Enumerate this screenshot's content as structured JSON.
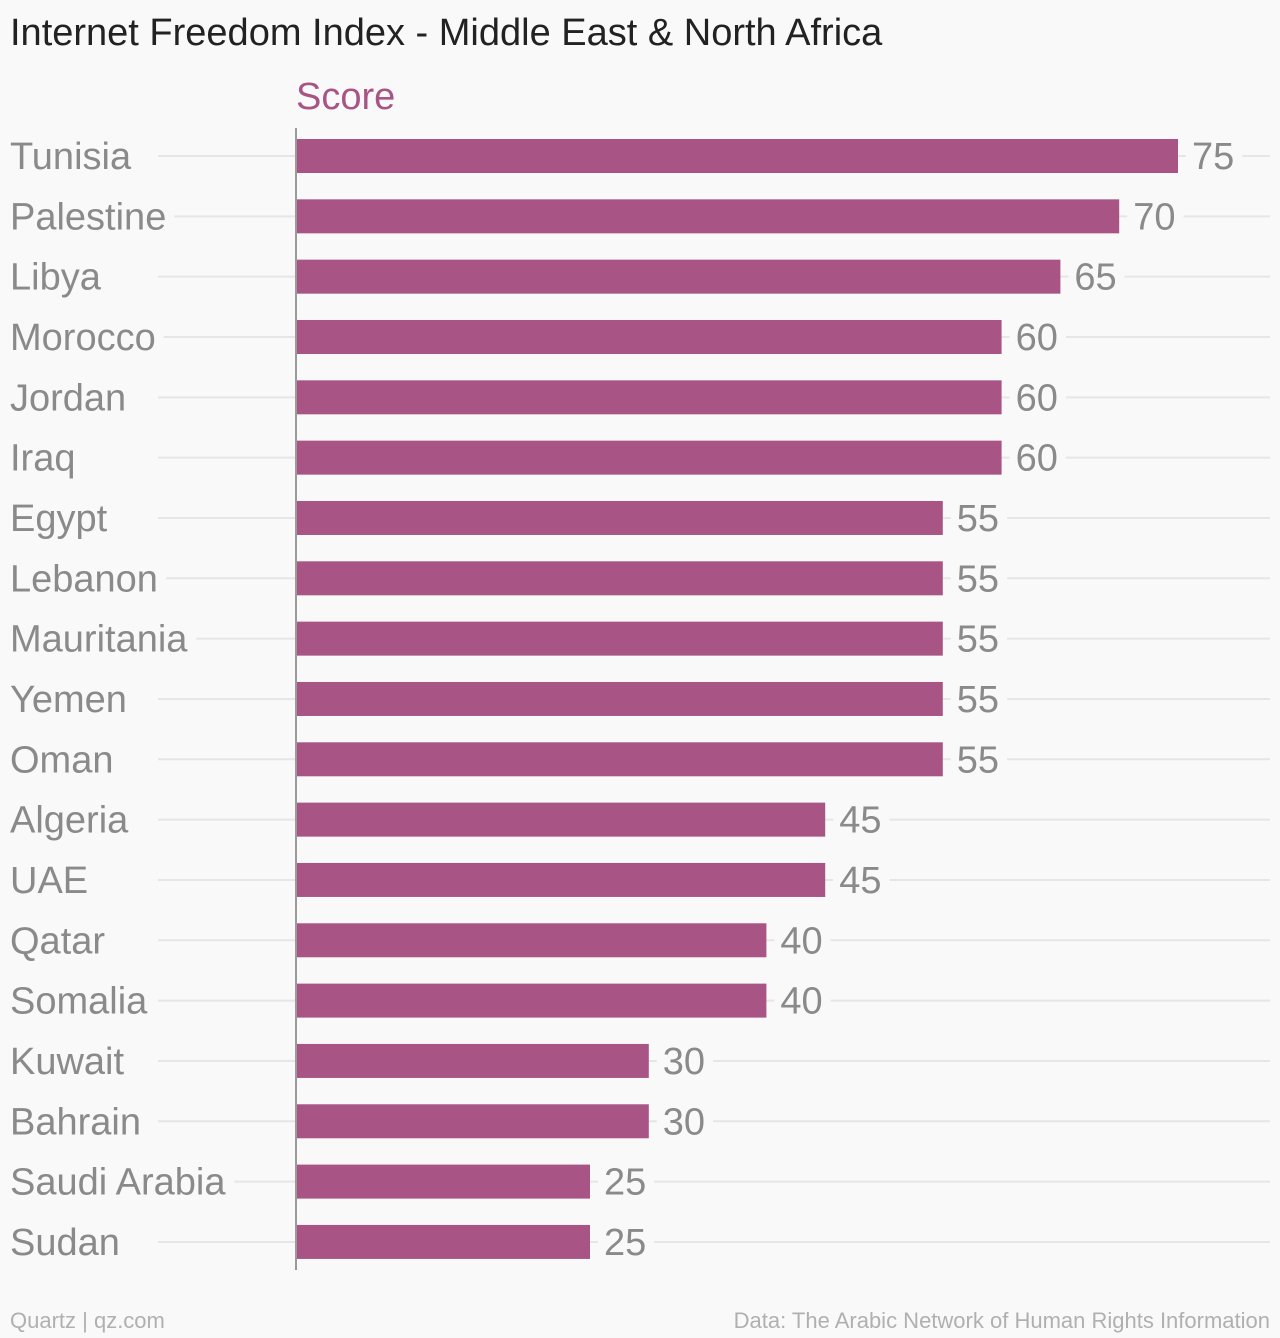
{
  "chart_data": {
    "type": "bar",
    "orientation": "horizontal",
    "title": "Internet Freedom Index - Middle East & North Africa",
    "series": [
      {
        "name": "Score",
        "values": [
          75,
          70,
          65,
          60,
          60,
          60,
          55,
          55,
          55,
          55,
          55,
          45,
          45,
          40,
          40,
          30,
          30,
          25,
          25
        ]
      }
    ],
    "categories": [
      "Tunisia",
      "Palestine",
      "Libya",
      "Morocco",
      "Jordan",
      "Iraq",
      "Egypt",
      "Lebanon",
      "Mauritania",
      "Yemen",
      "Oman",
      "Algeria",
      "UAE",
      "Qatar",
      "Somalia",
      "Kuwait",
      "Bahrain",
      "Saudi Arabia",
      "Sudan"
    ],
    "xlim": [
      0,
      75
    ],
    "grid": true,
    "data_labels": true
  },
  "footer": {
    "credit": "Quartz | qz.com",
    "source": "Data: The Arabic Network of Human Rights Information"
  },
  "colors": {
    "bar": "#a85585",
    "series_label": "#a85585",
    "axis_line": "#9a9a9a",
    "gridline": "#e6e6e6"
  }
}
